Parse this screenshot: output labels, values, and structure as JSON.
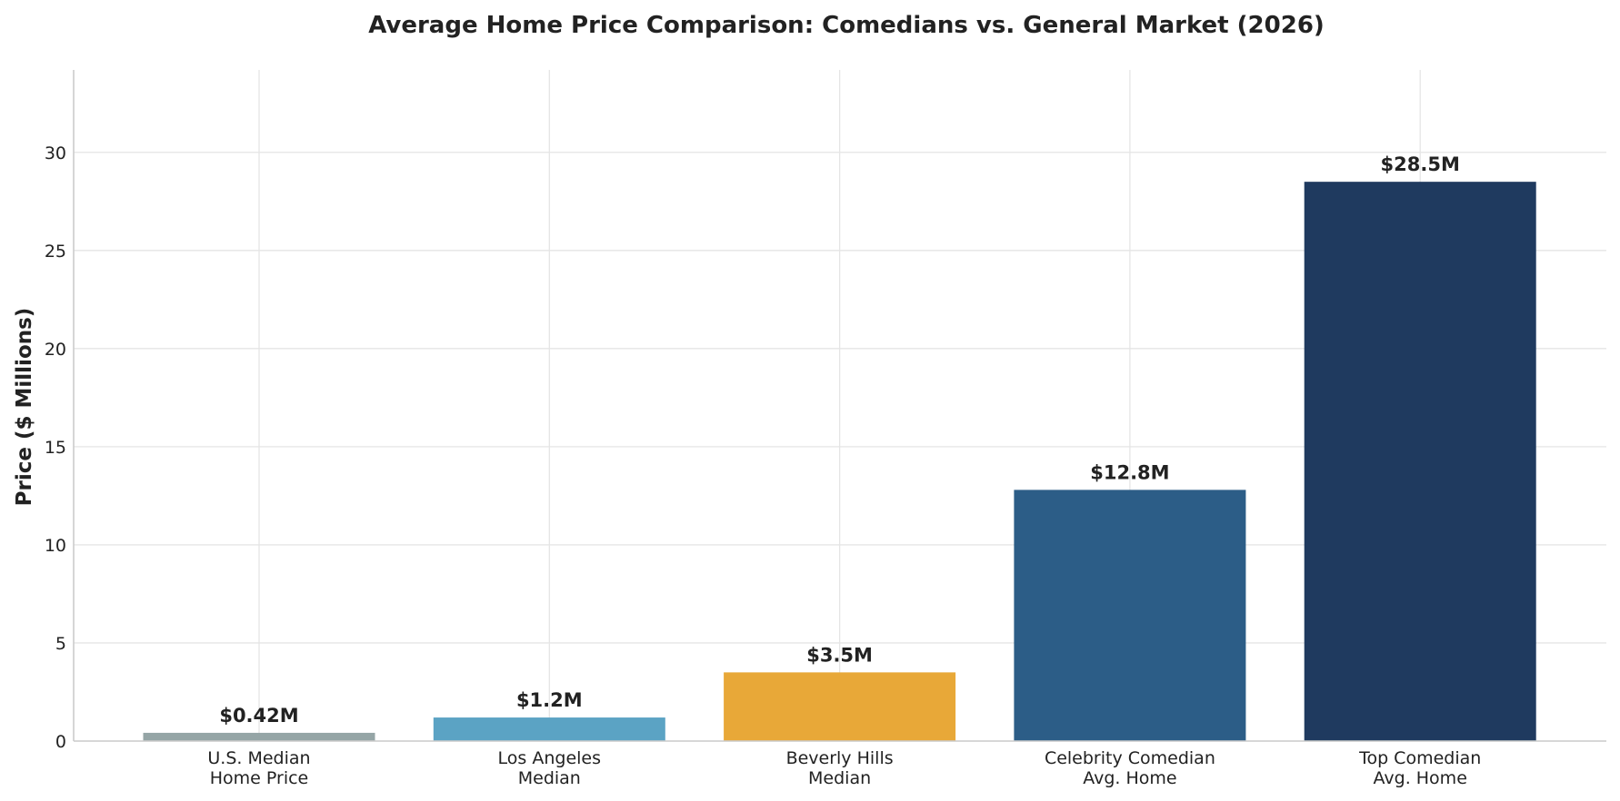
{
  "chart_data": {
    "type": "bar",
    "title": "Average Home Price Comparison: Comedians vs. General Market (2026)",
    "xlabel": "",
    "ylabel": "Price ($ Millions)",
    "ylim": [
      0,
      34.2
    ],
    "yticks": [
      0,
      5,
      10,
      15,
      20,
      25,
      30
    ],
    "grid": true,
    "categories": [
      [
        "U.S. Median",
        "Home Price"
      ],
      [
        "Los Angeles",
        "Median"
      ],
      [
        "Beverly Hills",
        "Median"
      ],
      [
        "Celebrity Comedian",
        "Avg. Home"
      ],
      [
        "Top Comedian",
        "Avg. Home"
      ]
    ],
    "values": [
      0.42,
      1.2,
      3.5,
      12.8,
      28.5
    ],
    "data_labels": [
      "$0.42M",
      "$1.2M",
      "$3.5M",
      "$12.8M",
      "$28.5M"
    ],
    "colors": [
      "#95a5a6",
      "#5ba3c4",
      "#e8a838",
      "#2c5d87",
      "#1f3a5f"
    ]
  }
}
